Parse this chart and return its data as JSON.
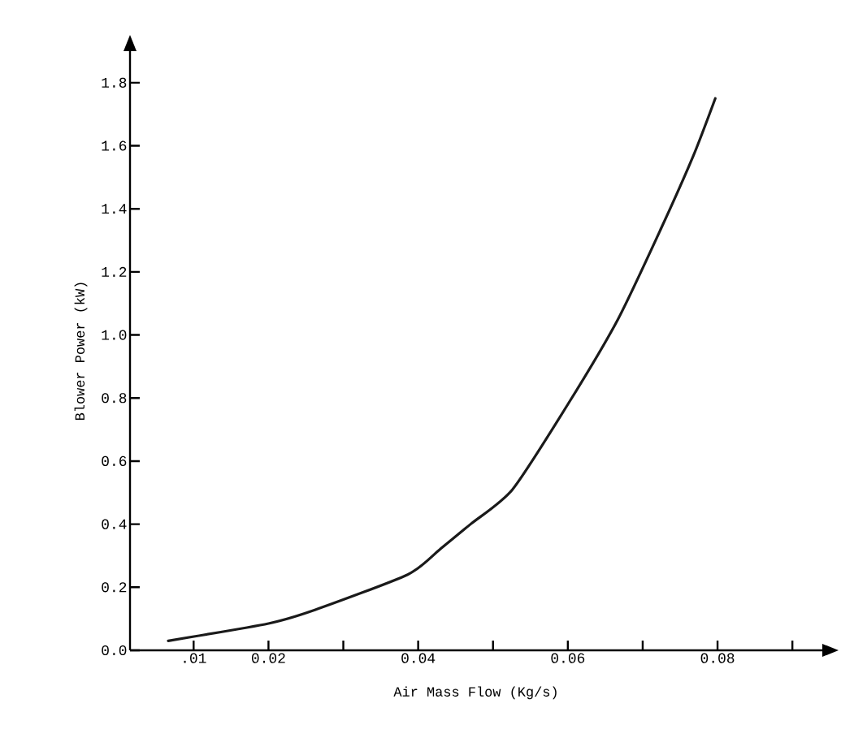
{
  "chart_data": {
    "type": "line",
    "xlabel": "Air Mass Flow (Kg/s)",
    "ylabel": "Blower Power (kW)",
    "x": [
      0.0066,
      0.02,
      0.0262,
      0.0386,
      0.0429,
      0.047,
      0.0526,
      0.06,
      0.0667,
      0.0725,
      0.0768,
      0.0797
    ],
    "series": [
      {
        "color": "#1a1a1a",
        "values": [
          0.03,
          0.085,
          0.128,
          0.24,
          0.32,
          0.4,
          0.51,
          0.78,
          1.05,
          1.34,
          1.57,
          1.75
        ]
      }
    ],
    "xlim": [
      0.0015,
      0.094
    ],
    "ylim": [
      0,
      1.9
    ],
    "xticks": [
      {
        "value": 0.01,
        "label": ".01"
      },
      {
        "value": 0.02,
        "label": "0.02"
      },
      {
        "value": 0.03,
        "label": null
      },
      {
        "value": 0.04,
        "label": "0.04"
      },
      {
        "value": 0.05,
        "label": null
      },
      {
        "value": 0.06,
        "label": "0.06"
      },
      {
        "value": 0.07,
        "label": null
      },
      {
        "value": 0.08,
        "label": "0.08"
      },
      {
        "value": 0.09,
        "label": null
      }
    ],
    "yticks": [
      {
        "value": 0,
        "label": "0.0"
      },
      {
        "value": 0.2,
        "label": "0.2"
      },
      {
        "value": 0.4,
        "label": "0.4"
      },
      {
        "value": 0.6,
        "label": "0.6"
      },
      {
        "value": 0.8,
        "label": "0.8"
      },
      {
        "value": 1.0,
        "label": "1.0"
      },
      {
        "value": 1.2,
        "label": "1.2"
      },
      {
        "value": 1.4,
        "label": "1.4"
      },
      {
        "value": 1.6,
        "label": "1.6"
      },
      {
        "value": 1.8,
        "label": "1.8"
      }
    ],
    "marker": "none",
    "line_style": "solid"
  }
}
